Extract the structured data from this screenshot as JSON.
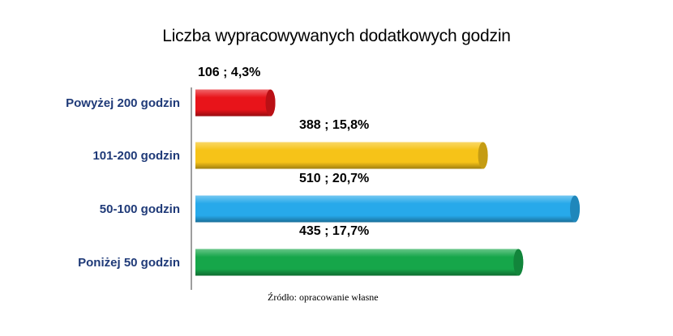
{
  "chart_data": {
    "type": "bar",
    "orientation": "horizontal",
    "title": "Liczba wypracowywanych dodatkowych godzin",
    "categories": [
      "Powyżej 200 godzin",
      "101-200 godzin",
      "50-100 godzin",
      "Poniżej 50 godzin"
    ],
    "values": [
      106,
      388,
      510,
      435
    ],
    "data_labels": [
      "106 ; 4,3%",
      "388 ; 15,8%",
      "510 ; 20,7%",
      "435 ; 17,7%"
    ],
    "colors": [
      "#e8141a",
      "#f6c318",
      "#27a9ea",
      "#16a64a"
    ],
    "grid": false,
    "legend": "none"
  },
  "source": "Źródło: opracowanie własne"
}
